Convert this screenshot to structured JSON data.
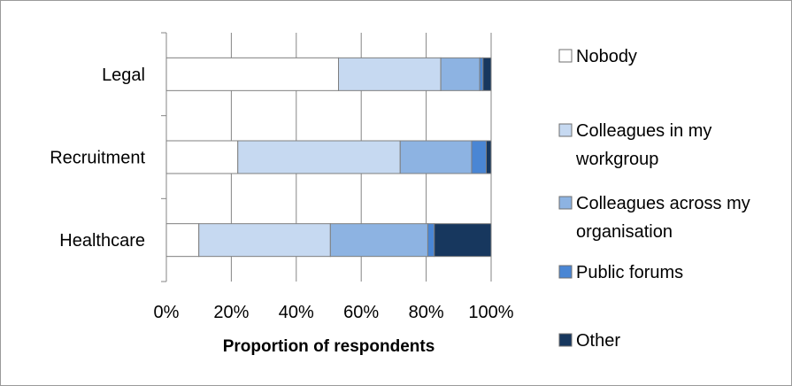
{
  "chart_data": {
    "type": "bar",
    "orientation": "horizontal",
    "stacked": "percent",
    "categories": [
      "Legal",
      "Recruitment",
      "Healthcare"
    ],
    "series": [
      {
        "name": "Nobody",
        "values": [
          53,
          22,
          10
        ],
        "color": "#ffffff"
      },
      {
        "name": "Colleagues in my workgroup",
        "values": [
          31.5,
          50,
          40.5
        ],
        "color": "#c6d9f1"
      },
      {
        "name": "Colleagues across my organisation",
        "values": [
          12,
          22,
          30
        ],
        "color": "#8db3e2"
      },
      {
        "name": "Public forums",
        "values": [
          1,
          4.5,
          2
        ],
        "color": "#4a86d4"
      },
      {
        "name": "Other",
        "values": [
          2.5,
          1.5,
          17.5
        ],
        "color": "#17375e"
      }
    ],
    "xlabel": "Proportion of respondents",
    "ylabel": "",
    "xlim": [
      0,
      100
    ],
    "xticks": [
      "0%",
      "20%",
      "40%",
      "60%",
      "80%",
      "100%"
    ],
    "grid": "vertical",
    "legend_position": "right"
  }
}
